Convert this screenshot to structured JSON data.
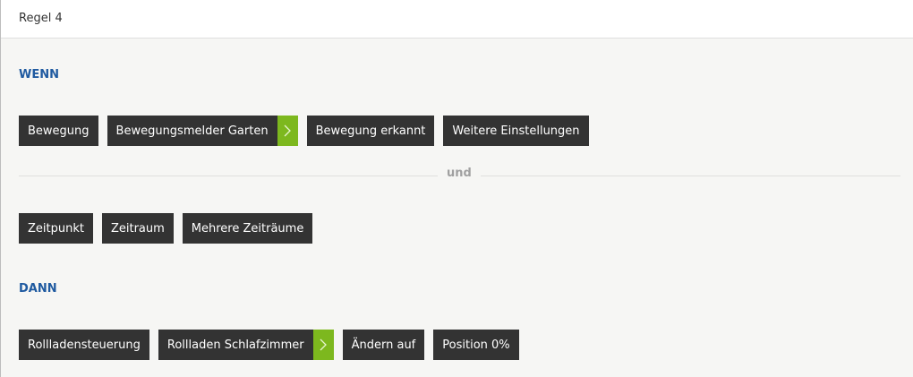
{
  "header": {
    "title": "Regel 4"
  },
  "when": {
    "title": "WENN",
    "items": [
      {
        "label": "Bewegung",
        "arrow": false
      },
      {
        "label": "Bewegungsmelder Garten",
        "arrow": true
      },
      {
        "label": "Bewegung erkannt",
        "arrow": false
      },
      {
        "label": "Weitere Einstellungen",
        "arrow": false
      }
    ]
  },
  "connector": "und",
  "time": {
    "items": [
      {
        "label": "Zeitpunkt"
      },
      {
        "label": "Zeitraum"
      },
      {
        "label": "Mehrere Zeiträume"
      }
    ]
  },
  "then": {
    "title": "DANN",
    "items": [
      {
        "label": "Rollladensteuerung",
        "arrow": false
      },
      {
        "label": "Rollladen Schlafzimmer",
        "arrow": true
      },
      {
        "label": "Ändern auf",
        "arrow": false
      },
      {
        "label": "Position 0%",
        "arrow": false
      }
    ]
  },
  "colors": {
    "accent": "#1f5aa0",
    "arrow": "#7db81e",
    "chip": "#333333"
  }
}
